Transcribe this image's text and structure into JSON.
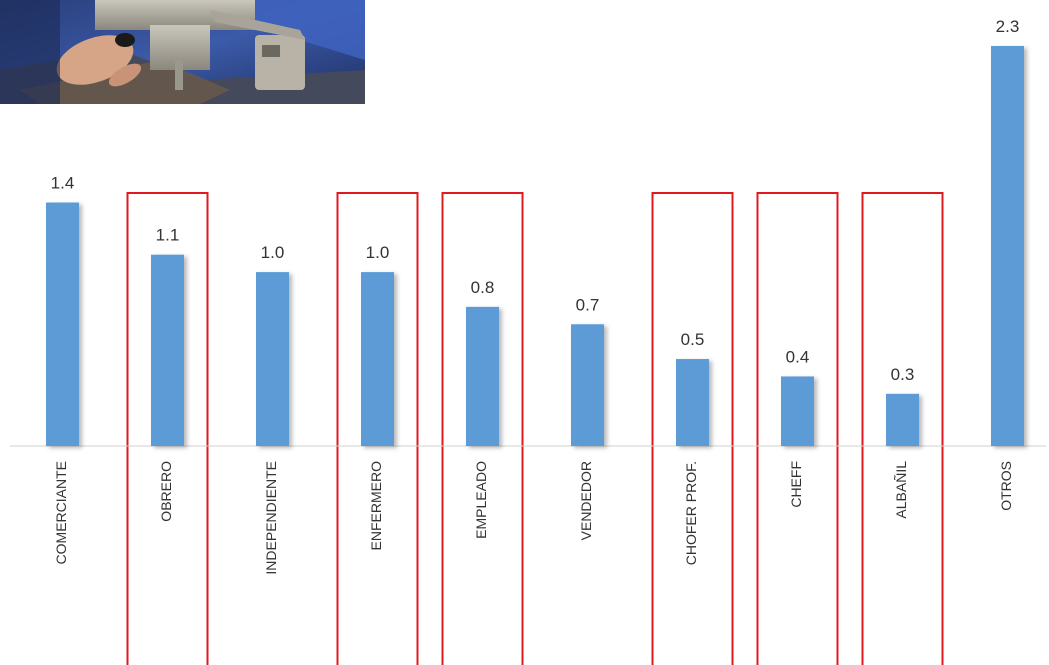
{
  "chart_data": {
    "type": "bar",
    "title": "",
    "xlabel": "",
    "ylabel": "",
    "categories": [
      "COMERCIANTE",
      "OBRERO",
      "INDEPENDIENTE",
      "ENFERMERO",
      "EMPLEADO",
      "VENDEDOR",
      "CHOFER PROF.",
      "CHEFF",
      "ALBAÑIL",
      "OTROS"
    ],
    "values": [
      1.4,
      1.1,
      1.0,
      1.0,
      0.8,
      0.7,
      0.5,
      0.4,
      0.3,
      2.3
    ],
    "value_labels": [
      "1.4",
      "1.1",
      "1.0",
      "1.0",
      "0.8",
      "0.7",
      "0.5",
      "0.4",
      "0.3",
      "2.3"
    ],
    "highlighted_categories": [
      "OBRERO",
      "ENFERMERO",
      "EMPLEADO",
      "CHOFER PROF.",
      "CHEFF",
      "ALBAÑIL"
    ],
    "ylim": [
      0,
      2.3
    ],
    "grid": false,
    "legend": "none",
    "colors": {
      "bar": "#5b9bd5",
      "highlight_box": "#e0191f",
      "axis": "#d0d0d0",
      "text": "#333333"
    }
  },
  "image": {
    "subject": "industrial-sewing-machine-photo"
  }
}
